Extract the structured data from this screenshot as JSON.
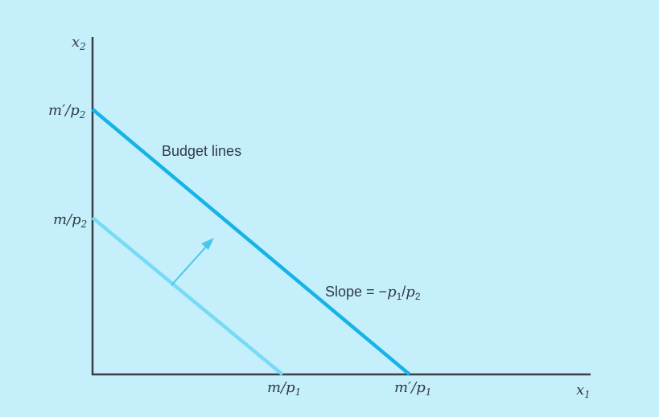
{
  "axes": {
    "x_label_base": "x",
    "x_label_sub": "1",
    "y_label_base": "x",
    "y_label_sub": "2"
  },
  "labels": {
    "y_outer_main": "m′/p",
    "y_outer_sub": "2",
    "y_inner_main": "m/p",
    "y_inner_sub": "2",
    "x_inner_main": "m/p",
    "x_inner_sub": "1",
    "x_outer_main": "m′/p",
    "x_outer_sub": "1",
    "budget_lines": "Budget lines",
    "slope_prefix": "Slope = −",
    "slope_p1": "p",
    "slope_p1_sub": "1",
    "slope_sep": "/",
    "slope_p2": "p",
    "slope_p2_sub": "2"
  },
  "colors": {
    "background": "#c6effc",
    "axis": "#3a3f44",
    "outer_line": "#17b3e6",
    "inner_line": "#78dbf5",
    "arrow": "#4cc6ee",
    "text": "#2f3b45"
  }
}
